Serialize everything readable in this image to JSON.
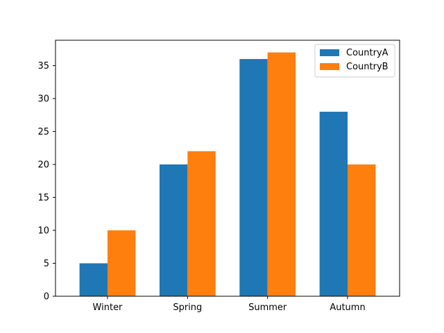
{
  "chart_data": {
    "type": "bar",
    "categories": [
      "Winter",
      "Spring",
      "Summer",
      "Autumn"
    ],
    "series": [
      {
        "name": "CountryA",
        "color": "#1f77b4",
        "values": [
          5,
          20,
          36,
          28
        ]
      },
      {
        "name": "CountryB",
        "color": "#ff7f0e",
        "values": [
          10,
          22,
          37,
          20
        ]
      }
    ],
    "title": "",
    "xlabel": "",
    "ylabel": "",
    "ylim": [
      0,
      38.85
    ],
    "yticks": [
      0,
      5,
      10,
      15,
      20,
      25,
      30,
      35
    ],
    "grid": false,
    "legend_position": "top-right"
  }
}
